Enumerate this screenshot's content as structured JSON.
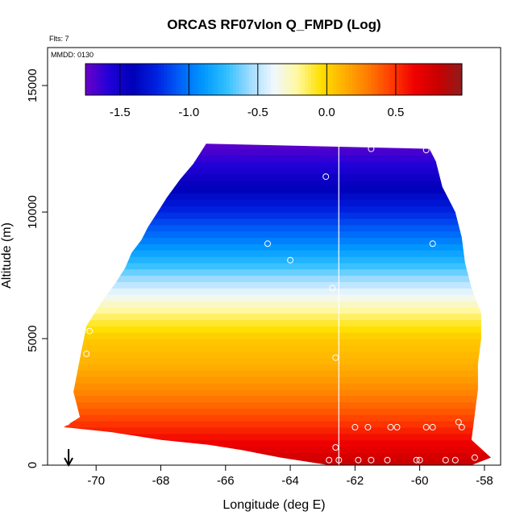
{
  "chart_data": {
    "type": "heatmap",
    "title": "ORCAS RF07vlon Q_FMPD (Log)",
    "notes": {
      "flts": "Flts: 7",
      "mmdd": "MMDD: 0130"
    },
    "xlabel": "Longitude (deg E)",
    "ylabel": "Altitude (m)",
    "xlim": [
      -71.5,
      -57.5
    ],
    "ylim": [
      0,
      16500
    ],
    "x_ticks": [
      -70,
      -68,
      -66,
      -64,
      -62,
      -60,
      -58
    ],
    "x_tick_labels": [
      "-70",
      "-68",
      "-66",
      "-64",
      "-62",
      "-60",
      "-58"
    ],
    "y_ticks": [
      0,
      5000,
      10000,
      15000
    ],
    "y_tick_labels": [
      "0",
      "5000",
      "10000",
      "15000"
    ],
    "colorbar": {
      "min": -1.75,
      "max": 0.98,
      "ticks": [
        -1.5,
        -1.0,
        -0.5,
        0.0,
        0.5
      ],
      "tick_labels": [
        "-1.5",
        "-1.0",
        "-0.5",
        "0.0",
        "0.5"
      ],
      "colors": [
        "#6a00c8",
        "#2200d8",
        "#0000b8",
        "#0020e0",
        "#0060f8",
        "#0098ff",
        "#30c0ff",
        "#a0dcff",
        "#f0f8ff",
        "#fff8a0",
        "#ffe000",
        "#ffb000",
        "#ff7c00",
        "#ff3c00",
        "#f00000",
        "#c80000",
        "#901c1c"
      ]
    },
    "field_profile": {
      "altitude_m": [
        0,
        1000,
        2000,
        3000,
        4000,
        5000,
        6000,
        7000,
        8000,
        9000,
        10000,
        11000,
        12000,
        12700
      ],
      "log_value": [
        0.82,
        0.62,
        0.42,
        0.25,
        0.12,
        0.04,
        -0.18,
        -0.45,
        -0.75,
        -1.0,
        -1.22,
        -1.42,
        -1.6,
        -1.72
      ]
    },
    "coverage": {
      "west_edge": {
        "altitude_m": [
          1500,
          1900,
          2900,
          4200,
          5500,
          6500,
          7200,
          7800,
          8400,
          8900,
          9400,
          10000,
          10600,
          11300,
          11900,
          12300,
          12700
        ],
        "longitude": [
          -71.0,
          -70.5,
          -70.7,
          -70.5,
          -70.3,
          -69.8,
          -69.4,
          -69.1,
          -68.9,
          -68.6,
          -68.4,
          -68.1,
          -67.8,
          -67.4,
          -67.0,
          -66.8,
          -66.6
        ]
      },
      "east_edge": {
        "altitude_m": [
          300,
          1000,
          2000,
          3000,
          4000,
          5000,
          6000,
          7000,
          8000,
          9000,
          10000,
          11000,
          12000,
          12500
        ],
        "longitude": [
          -57.8,
          -58.4,
          -58.3,
          -58.2,
          -58.2,
          -58.1,
          -58.1,
          -58.4,
          -58.6,
          -58.7,
          -58.9,
          -59.3,
          -59.5,
          -59.7
        ]
      },
      "bottom_edge": {
        "longitude": [
          -71.0,
          -69.5,
          -68.0,
          -66.5,
          -65.5,
          -64.3,
          -62.8,
          -58.4
        ],
        "altitude_m": [
          1500,
          1300,
          1000,
          800,
          600,
          300,
          0,
          0
        ]
      }
    },
    "vertical_line_longitude": -62.5,
    "observations": [
      [
        -70.9,
        1700
      ],
      [
        -70.2,
        5300
      ],
      [
        -70.3,
        4400
      ],
      [
        -66.3,
        12900
      ],
      [
        -62.9,
        11400
      ],
      [
        -61.5,
        12500
      ],
      [
        -59.8,
        12450
      ],
      [
        -64.7,
        8750
      ],
      [
        -64.0,
        8100
      ],
      [
        -59.6,
        8750
      ],
      [
        -62.6,
        4250
      ],
      [
        -62.7,
        7000
      ],
      [
        -62.6,
        700
      ],
      [
        -62.8,
        200
      ],
      [
        -62.5,
        200
      ],
      [
        -61.9,
        200
      ],
      [
        -61.5,
        200
      ],
      [
        -61.0,
        200
      ],
      [
        -60.1,
        200
      ],
      [
        -60.0,
        200
      ],
      [
        -59.2,
        200
      ],
      [
        -58.9,
        200
      ],
      [
        -58.3,
        300
      ],
      [
        -62.0,
        1500
      ],
      [
        -61.6,
        1500
      ],
      [
        -60.9,
        1500
      ],
      [
        -60.7,
        1500
      ],
      [
        -59.8,
        1500
      ],
      [
        -59.6,
        1500
      ],
      [
        -58.8,
        1700
      ],
      [
        -58.7,
        1500
      ]
    ],
    "marker": {
      "label": "down-arrow",
      "longitude": -70.85
    }
  }
}
